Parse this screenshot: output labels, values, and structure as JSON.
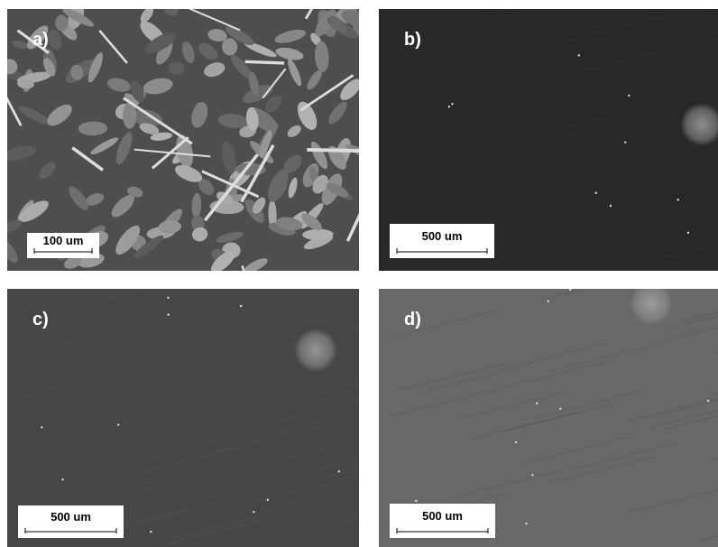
{
  "panels": [
    {
      "label": "a)",
      "scale": "100 um"
    },
    {
      "label": "b)",
      "scale": "500 um"
    },
    {
      "label": "c)",
      "scale": "500 um"
    },
    {
      "label": "d)",
      "scale": "500 um"
    }
  ]
}
